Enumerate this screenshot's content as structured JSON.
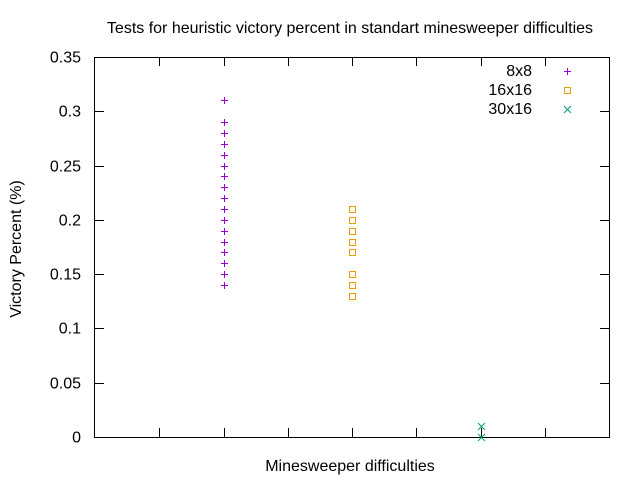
{
  "chart_data": {
    "type": "scatter",
    "title": "Tests for heuristic victory percent in standart minesweeper difficulties",
    "xlabel": "Minesweeper difficulties",
    "ylabel": "Victory Percent (%)",
    "ylim": [
      0,
      0.35
    ],
    "yticks": [
      "0",
      "0.05",
      "0.1",
      "0.15",
      "0.2",
      "0.25",
      "0.3",
      "0.35"
    ],
    "xlim": [
      0,
      8
    ],
    "grid": false,
    "legend_position": "top-right",
    "series": [
      {
        "name": "8x8",
        "marker": "plus",
        "color": "#9400d3",
        "x": 2,
        "values": [
          0.31,
          0.29,
          0.28,
          0.27,
          0.26,
          0.25,
          0.24,
          0.23,
          0.22,
          0.21,
          0.2,
          0.19,
          0.18,
          0.17,
          0.16,
          0.15,
          0.14
        ]
      },
      {
        "name": "16x16",
        "marker": "square",
        "color": "#e69f00",
        "x": 4,
        "values": [
          0.21,
          0.2,
          0.19,
          0.18,
          0.17,
          0.15,
          0.14,
          0.13
        ]
      },
      {
        "name": "30x16",
        "marker": "cross",
        "color": "#009e73",
        "x": 6,
        "values": [
          0.01,
          0.0
        ]
      }
    ]
  }
}
